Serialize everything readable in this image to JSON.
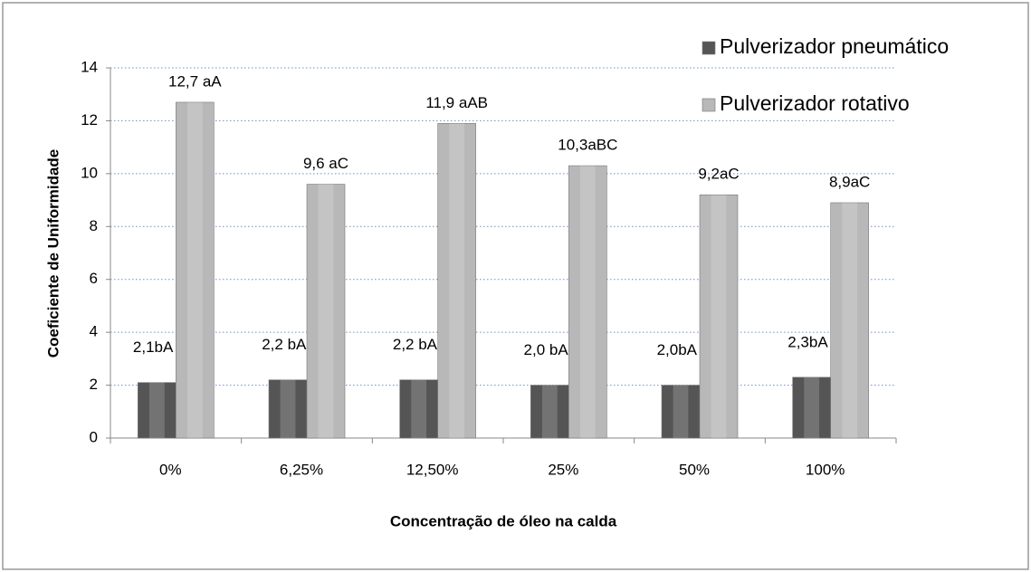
{
  "chart_data": {
    "type": "bar",
    "x_label": "Concentração de óleo na calda",
    "y_label": "Coeficiente de Uniformidade",
    "categories": [
      "0%",
      "6,25%",
      "12,50%",
      "25%",
      "50%",
      "100%"
    ],
    "series": [
      {
        "name": "Pulverizador pneumático",
        "color": "#555555",
        "values": [
          2.1,
          2.2,
          2.2,
          2.0,
          2.0,
          2.3
        ],
        "value_labels": [
          "2,1bA",
          "2,2 bA",
          "2,2 bA",
          "2,0 bA",
          "2,0bA",
          "2,3bA"
        ]
      },
      {
        "name": "Pulverizador rotativo",
        "color": "#b8b8b8",
        "values": [
          12.7,
          9.6,
          11.9,
          10.3,
          9.2,
          8.9
        ],
        "value_labels": [
          "12,7 aA",
          "9,6 aC",
          "11,9 aAB",
          "10,3aBC",
          "9,2aC",
          "8,9aC"
        ]
      }
    ],
    "ylim": [
      0,
      14
    ],
    "yticks": [
      0,
      2,
      4,
      6,
      8,
      10,
      12,
      14
    ],
    "grid": true,
    "legend": "top-right"
  }
}
